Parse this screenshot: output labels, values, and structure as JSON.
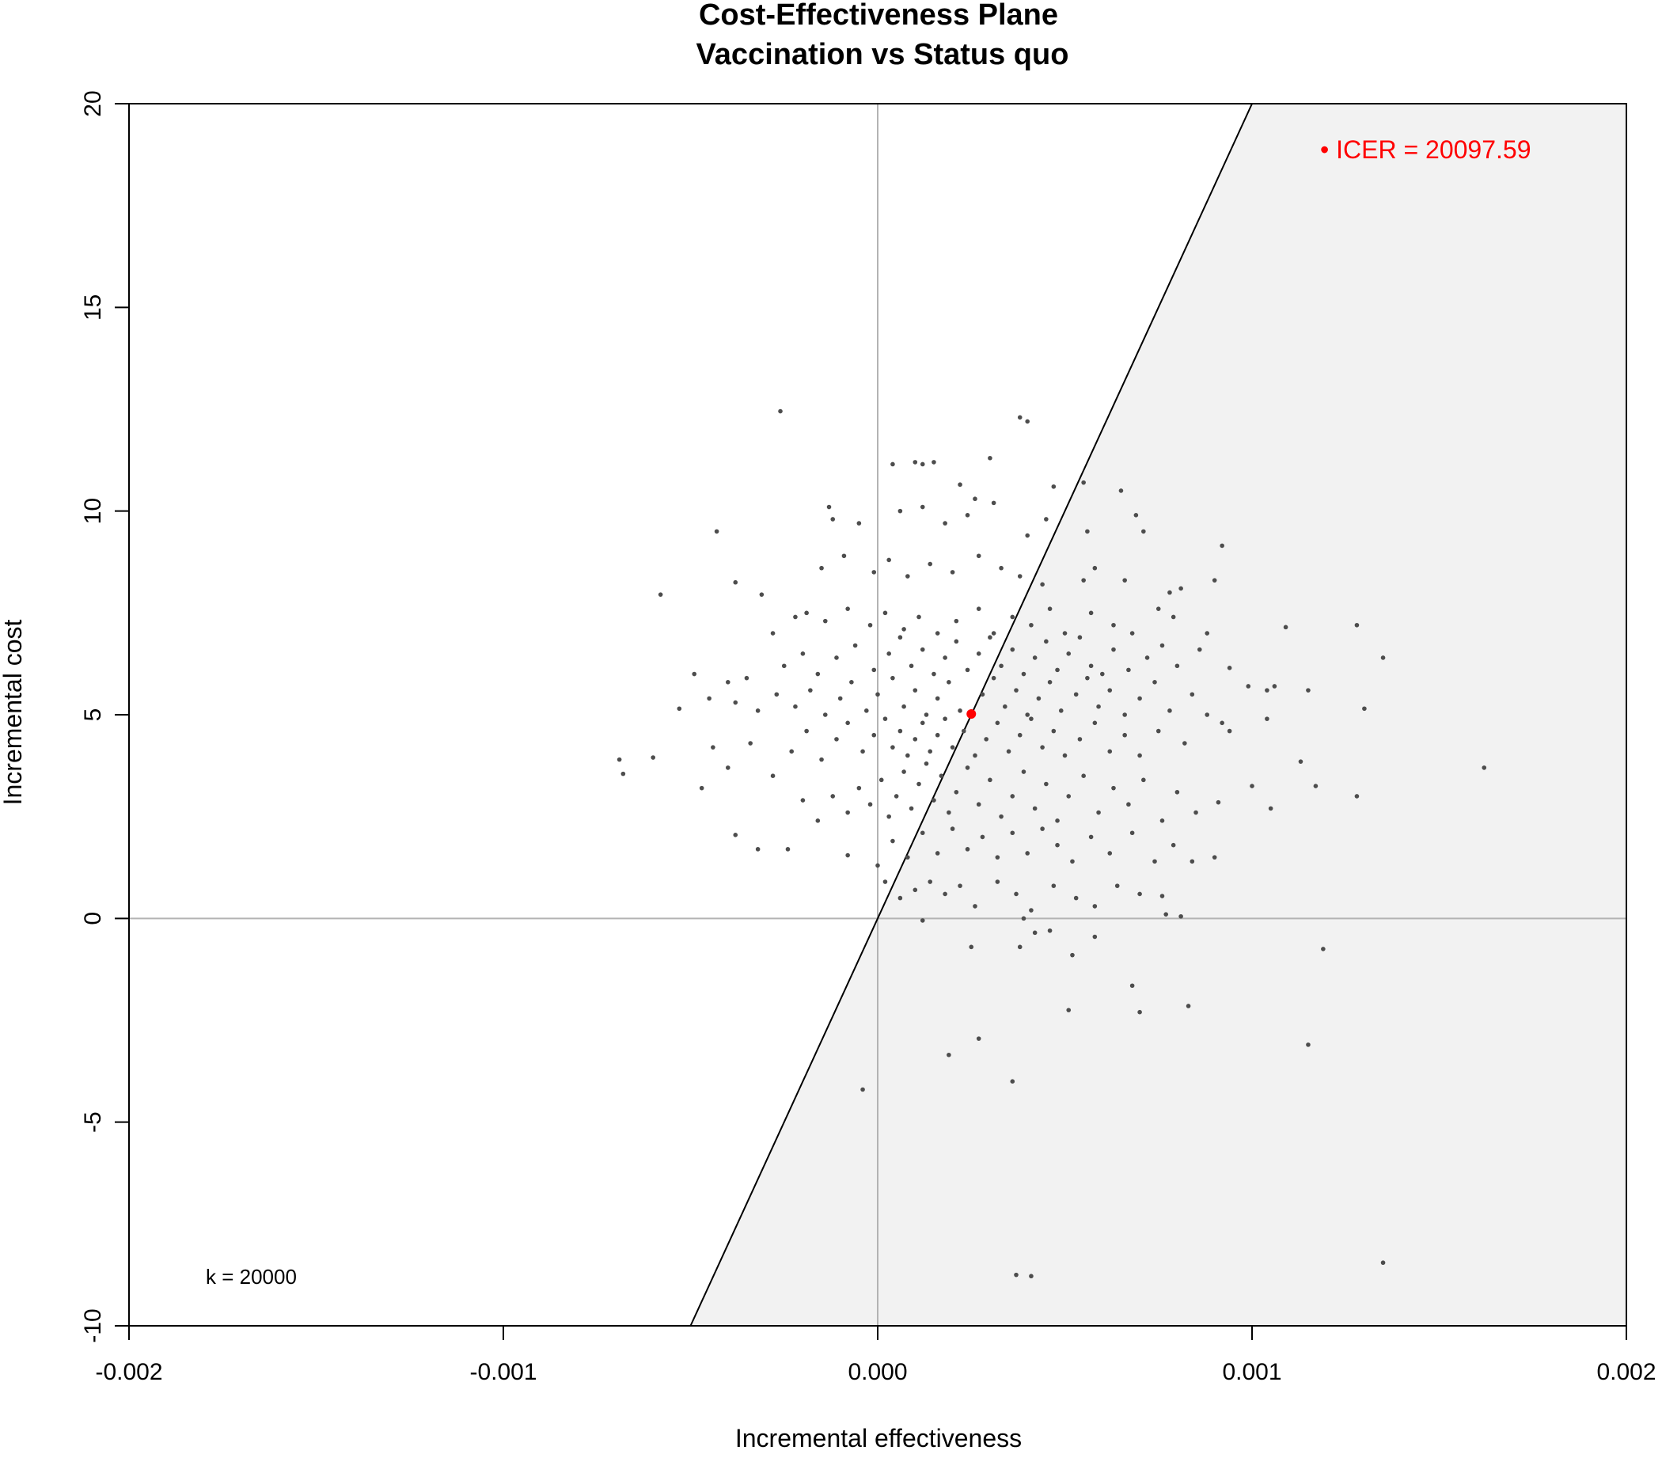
{
  "chart_data": {
    "type": "scatter",
    "title": "Cost-Effectiveness Plane",
    "subtitle": "Vaccination vs Status quo",
    "xlabel": "Incremental effectiveness",
    "ylabel": "Incremental cost",
    "xlim": [
      -0.002,
      0.002
    ],
    "ylim": [
      -10,
      20
    ],
    "x_ticks": [
      "-0.002",
      "-0.001",
      "0.000",
      "0.001",
      "0.002"
    ],
    "x_tick_values": [
      -0.002,
      -0.001,
      0,
      0.001,
      0.002
    ],
    "y_ticks": [
      "-10",
      "-5",
      "0",
      "5",
      "10",
      "15",
      "20"
    ],
    "y_tick_values": [
      -10,
      -5,
      0,
      5,
      10,
      15,
      20
    ],
    "grid": false,
    "reference_lines": {
      "x": 0,
      "y": 0
    },
    "wtp_label": "k = 20000",
    "wtp_threshold": 20000,
    "region_fill": "#f2f2f2",
    "point_color": "#4d4d4d",
    "icer_color": "#ff0000",
    "icer_label": "• ICER = 20097.59",
    "icer_point": {
      "x": 0.00025,
      "y": 5.02
    },
    "points": [
      [
        -0.00026,
        12.45
      ],
      [
        0.00038,
        12.3
      ],
      [
        0.0004,
        12.2
      ],
      [
        0.0003,
        11.3
      ],
      [
        4e-05,
        11.15
      ],
      [
        0.0001,
        11.2
      ],
      [
        0.00012,
        11.15
      ],
      [
        0.00015,
        11.2
      ],
      [
        0.00022,
        10.65
      ],
      [
        0.00026,
        10.3
      ],
      [
        0.00031,
        10.2
      ],
      [
        0.00047,
        10.6
      ],
      [
        0.00065,
        10.5
      ],
      [
        0.00069,
        9.9
      ],
      [
        0.00071,
        9.5
      ],
      [
        0.00055,
        10.7
      ],
      [
        -0.00043,
        9.5
      ],
      [
        -0.00013,
        10.1
      ],
      [
        -0.00012,
        9.8
      ],
      [
        -5e-05,
        9.7
      ],
      [
        6e-05,
        10.0
      ],
      [
        0.00012,
        10.1
      ],
      [
        0.00018,
        9.7
      ],
      [
        0.00024,
        9.9
      ],
      [
        0.0004,
        9.4
      ],
      [
        0.00045,
        9.8
      ],
      [
        0.00056,
        9.5
      ],
      [
        0.00092,
        9.15
      ],
      [
        -0.00038,
        8.25
      ],
      [
        -0.00031,
        7.95
      ],
      [
        -0.00058,
        7.95
      ],
      [
        -0.00015,
        8.6
      ],
      [
        -9e-05,
        8.9
      ],
      [
        -1e-05,
        8.5
      ],
      [
        3e-05,
        8.8
      ],
      [
        8e-05,
        8.4
      ],
      [
        0.00014,
        8.7
      ],
      [
        0.0002,
        8.5
      ],
      [
        0.00027,
        8.9
      ],
      [
        0.00033,
        8.6
      ],
      [
        0.00038,
        8.4
      ],
      [
        0.00044,
        8.2
      ],
      [
        0.00055,
        8.3
      ],
      [
        0.00058,
        8.6
      ],
      [
        0.00066,
        8.3
      ],
      [
        0.00078,
        8.0
      ],
      [
        0.00081,
        8.1
      ],
      [
        0.0009,
        8.3
      ],
      [
        -0.00028,
        7.0
      ],
      [
        -0.00022,
        7.4
      ],
      [
        -0.00019,
        7.5
      ],
      [
        -0.00014,
        7.3
      ],
      [
        -8e-05,
        7.6
      ],
      [
        -2e-05,
        7.2
      ],
      [
        2e-05,
        7.5
      ],
      [
        7e-05,
        7.1
      ],
      [
        0.00011,
        7.4
      ],
      [
        0.00016,
        7.0
      ],
      [
        0.00021,
        7.3
      ],
      [
        0.00027,
        7.6
      ],
      [
        0.00031,
        7.0
      ],
      [
        0.00036,
        7.4
      ],
      [
        0.00041,
        7.2
      ],
      [
        0.00046,
        7.6
      ],
      [
        0.0005,
        7.0
      ],
      [
        0.00057,
        7.5
      ],
      [
        0.00063,
        7.2
      ],
      [
        0.00068,
        7.0
      ],
      [
        0.00075,
        7.6
      ],
      [
        0.00079,
        7.4
      ],
      [
        0.00088,
        7.0
      ],
      [
        0.00109,
        7.15
      ],
      [
        0.00128,
        7.2
      ],
      [
        -0.00049,
        6.0
      ],
      [
        -0.0004,
        5.8
      ],
      [
        -0.00035,
        5.9
      ],
      [
        -0.00025,
        6.2
      ],
      [
        -0.0002,
        6.5
      ],
      [
        -0.00016,
        6.0
      ],
      [
        -0.00011,
        6.4
      ],
      [
        -6e-05,
        6.7
      ],
      [
        -1e-05,
        6.1
      ],
      [
        3e-05,
        6.5
      ],
      [
        6e-05,
        6.9
      ],
      [
        9e-05,
        6.2
      ],
      [
        0.00012,
        6.6
      ],
      [
        0.00015,
        6.0
      ],
      [
        0.00018,
        6.4
      ],
      [
        0.00021,
        6.8
      ],
      [
        0.00024,
        6.1
      ],
      [
        0.00027,
        6.5
      ],
      [
        0.0003,
        6.9
      ],
      [
        0.00033,
        6.2
      ],
      [
        0.00036,
        6.6
      ],
      [
        0.00039,
        6.0
      ],
      [
        0.00042,
        6.4
      ],
      [
        0.00045,
        6.8
      ],
      [
        0.00048,
        6.1
      ],
      [
        0.00051,
        6.5
      ],
      [
        0.00054,
        6.9
      ],
      [
        0.00057,
        6.2
      ],
      [
        0.0006,
        6.0
      ],
      [
        0.00063,
        6.6
      ],
      [
        0.00067,
        6.1
      ],
      [
        0.00072,
        6.4
      ],
      [
        0.00076,
        6.7
      ],
      [
        0.0008,
        6.2
      ],
      [
        0.00086,
        6.6
      ],
      [
        0.00094,
        6.15
      ],
      [
        0.00135,
        6.4
      ],
      [
        -0.00053,
        5.15
      ],
      [
        -0.00045,
        5.4
      ],
      [
        -0.00038,
        5.3
      ],
      [
        -0.00032,
        5.1
      ],
      [
        -0.00027,
        5.5
      ],
      [
        -0.00022,
        5.2
      ],
      [
        -0.00018,
        5.6
      ],
      [
        -0.00014,
        5.0
      ],
      [
        -0.0001,
        5.4
      ],
      [
        -7e-05,
        5.8
      ],
      [
        -3e-05,
        5.1
      ],
      [
        0.0,
        5.5
      ],
      [
        4e-05,
        5.9
      ],
      [
        7e-05,
        5.2
      ],
      [
        0.0001,
        5.6
      ],
      [
        0.00013,
        5.0
      ],
      [
        0.00016,
        5.4
      ],
      [
        0.00019,
        5.8
      ],
      [
        0.00022,
        5.1
      ],
      [
        0.00028,
        5.5
      ],
      [
        0.00031,
        5.9
      ],
      [
        0.00034,
        5.2
      ],
      [
        0.00037,
        5.6
      ],
      [
        0.0004,
        5.0
      ],
      [
        0.00043,
        5.4
      ],
      [
        0.00046,
        5.8
      ],
      [
        0.00049,
        5.1
      ],
      [
        0.00053,
        5.5
      ],
      [
        0.00056,
        5.9
      ],
      [
        0.00059,
        5.2
      ],
      [
        0.00062,
        5.6
      ],
      [
        0.00066,
        5.0
      ],
      [
        0.0007,
        5.4
      ],
      [
        0.00074,
        5.8
      ],
      [
        0.00078,
        5.1
      ],
      [
        0.00084,
        5.5
      ],
      [
        0.00088,
        5.0
      ],
      [
        0.00099,
        5.7
      ],
      [
        0.00104,
        5.6
      ],
      [
        0.00106,
        5.7
      ],
      [
        0.00115,
        5.6
      ],
      [
        0.0013,
        5.15
      ],
      [
        -0.00069,
        3.9
      ],
      [
        -0.00068,
        3.55
      ],
      [
        -0.0006,
        3.95
      ],
      [
        -0.00047,
        3.2
      ],
      [
        -0.00044,
        4.2
      ],
      [
        -0.0004,
        3.7
      ],
      [
        -0.00034,
        4.3
      ],
      [
        -0.00028,
        3.5
      ],
      [
        -0.00023,
        4.1
      ],
      [
        -0.00019,
        4.6
      ],
      [
        -0.00015,
        3.9
      ],
      [
        -0.00011,
        4.4
      ],
      [
        -8e-05,
        4.8
      ],
      [
        -4e-05,
        4.1
      ],
      [
        -1e-05,
        4.5
      ],
      [
        2e-05,
        4.9
      ],
      [
        4e-05,
        4.2
      ],
      [
        6e-05,
        4.6
      ],
      [
        8e-05,
        4.0
      ],
      [
        0.0001,
        4.4
      ],
      [
        0.00012,
        4.8
      ],
      [
        0.00014,
        4.1
      ],
      [
        0.00016,
        4.5
      ],
      [
        0.00018,
        4.9
      ],
      [
        0.0002,
        4.2
      ],
      [
        0.00023,
        4.6
      ],
      [
        0.00026,
        4.0
      ],
      [
        0.00029,
        4.4
      ],
      [
        0.00032,
        4.8
      ],
      [
        0.00035,
        4.1
      ],
      [
        0.00038,
        4.5
      ],
      [
        0.00041,
        4.9
      ],
      [
        0.00044,
        4.2
      ],
      [
        0.00047,
        4.6
      ],
      [
        0.0005,
        4.0
      ],
      [
        0.00054,
        4.4
      ],
      [
        0.00058,
        4.8
      ],
      [
        0.00062,
        4.1
      ],
      [
        0.00066,
        4.5
      ],
      [
        0.0007,
        4.0
      ],
      [
        0.00075,
        4.6
      ],
      [
        0.00082,
        4.3
      ],
      [
        0.00092,
        4.8
      ],
      [
        0.00094,
        4.6
      ],
      [
        0.00104,
        4.9
      ],
      [
        0.00113,
        3.85
      ],
      [
        0.00162,
        3.7
      ],
      [
        -0.00038,
        2.05
      ],
      [
        -0.00032,
        1.7
      ],
      [
        -0.00024,
        1.7
      ],
      [
        -0.0002,
        2.9
      ],
      [
        -0.00016,
        2.4
      ],
      [
        -0.00012,
        3.0
      ],
      [
        -8e-05,
        2.6
      ],
      [
        -5e-05,
        3.2
      ],
      [
        -2e-05,
        2.8
      ],
      [
        1e-05,
        3.4
      ],
      [
        3e-05,
        2.5
      ],
      [
        5e-05,
        3.0
      ],
      [
        7e-05,
        3.6
      ],
      [
        9e-05,
        2.7
      ],
      [
        0.00011,
        3.3
      ],
      [
        0.00013,
        3.8
      ],
      [
        0.00015,
        2.9
      ],
      [
        0.00017,
        3.5
      ],
      [
        0.00019,
        2.6
      ],
      [
        0.00021,
        3.1
      ],
      [
        0.00024,
        3.7
      ],
      [
        0.00027,
        2.8
      ],
      [
        0.0003,
        3.4
      ],
      [
        0.00033,
        2.5
      ],
      [
        0.00036,
        3.0
      ],
      [
        0.00039,
        3.6
      ],
      [
        0.00042,
        2.7
      ],
      [
        0.00045,
        3.3
      ],
      [
        0.00048,
        2.4
      ],
      [
        0.00051,
        3.0
      ],
      [
        0.00055,
        3.5
      ],
      [
        0.00059,
        2.6
      ],
      [
        0.00063,
        3.2
      ],
      [
        0.00067,
        2.8
      ],
      [
        0.00071,
        3.4
      ],
      [
        0.00076,
        2.4
      ],
      [
        0.0008,
        3.1
      ],
      [
        0.00085,
        2.6
      ],
      [
        0.00091,
        2.85
      ],
      [
        0.001,
        3.25
      ],
      [
        0.00105,
        2.7
      ],
      [
        0.00117,
        3.25
      ],
      [
        0.00128,
        3.0
      ],
      [
        -8e-05,
        1.55
      ],
      [
        0.0,
        1.3
      ],
      [
        4e-05,
        1.9
      ],
      [
        8e-05,
        1.5
      ],
      [
        0.00012,
        2.1
      ],
      [
        0.00016,
        1.6
      ],
      [
        0.0002,
        2.2
      ],
      [
        0.00024,
        1.7
      ],
      [
        0.00028,
        2.0
      ],
      [
        0.00032,
        1.5
      ],
      [
        0.00036,
        2.1
      ],
      [
        0.0004,
        1.6
      ],
      [
        0.00044,
        2.2
      ],
      [
        0.00048,
        1.8
      ],
      [
        0.00052,
        1.4
      ],
      [
        0.00057,
        2.0
      ],
      [
        0.00062,
        1.6
      ],
      [
        0.00068,
        2.1
      ],
      [
        0.00074,
        1.4
      ],
      [
        0.00079,
        1.8
      ],
      [
        0.00084,
        1.4
      ],
      [
        0.0009,
        1.5
      ],
      [
        2e-05,
        0.9
      ],
      [
        6e-05,
        0.5
      ],
      [
        0.0001,
        0.7
      ],
      [
        0.00014,
        0.9
      ],
      [
        0.00018,
        0.6
      ],
      [
        0.00022,
        0.8
      ],
      [
        0.00026,
        0.3
      ],
      [
        0.00032,
        0.9
      ],
      [
        0.00037,
        0.6
      ],
      [
        0.00041,
        0.2
      ],
      [
        0.00047,
        0.8
      ],
      [
        0.00053,
        0.5
      ],
      [
        0.00058,
        0.3
      ],
      [
        0.00064,
        0.8
      ],
      [
        0.0007,
        0.6
      ],
      [
        0.00076,
        0.55
      ],
      [
        0.00081,
        0.05
      ],
      [
        0.00077,
        0.1
      ],
      [
        0.00012,
        -0.05
      ],
      [
        0.00039,
        0.0
      ],
      [
        0.00025,
        -0.7
      ],
      [
        0.00038,
        -0.7
      ],
      [
        0.00042,
        -0.35
      ],
      [
        0.00046,
        -0.3
      ],
      [
        0.00052,
        -0.9
      ],
      [
        0.00058,
        -0.45
      ],
      [
        0.00119,
        -0.75
      ],
      [
        0.00068,
        -1.65
      ],
      [
        0.00051,
        -2.25
      ],
      [
        0.0007,
        -2.3
      ],
      [
        0.00083,
        -2.15
      ],
      [
        0.00027,
        -2.95
      ],
      [
        0.00019,
        -3.35
      ],
      [
        0.00115,
        -3.1
      ],
      [
        -4e-05,
        -4.2
      ],
      [
        0.00036,
        -4.0
      ],
      [
        0.00037,
        -8.75
      ],
      [
        0.00041,
        -8.78
      ],
      [
        0.00135,
        -8.45
      ]
    ]
  }
}
